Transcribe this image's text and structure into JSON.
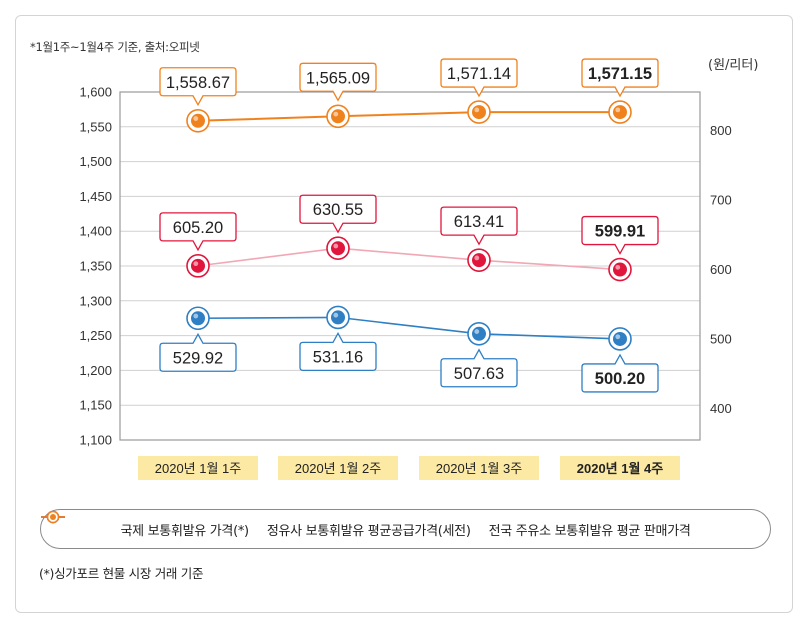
{
  "note_top": "*1월1주~1월4주 기준, 출처:오피넷",
  "unit_label": "(원/리터)",
  "footnote": "(*)싱가포르 현물 시장 거래 기준",
  "colors": {
    "orange": "#f0821e",
    "red": "#e0163c",
    "pink_line": "#f2a7b4",
    "blue": "#2f7fc4",
    "cat_bg": "#fbe9a4",
    "grid": "#d0d0d0"
  },
  "chart_data": {
    "type": "line",
    "categories": [
      "2020년 1월 1주",
      "2020년 1월 2주",
      "2020년 1월 3주",
      "2020년 1월 4주"
    ],
    "left_axis": {
      "ylim": [
        1100,
        1600
      ],
      "ticks": [
        "1,600",
        "1,550",
        "1,500",
        "1,450",
        "1,400",
        "1,350",
        "1,300",
        "1,250",
        "1,200",
        "1,150",
        "1,100"
      ]
    },
    "right_axis": {
      "ylim": [
        355,
        855
      ],
      "ticks": [
        "800",
        "700",
        "600",
        "500",
        "400"
      ],
      "tick_values": [
        800,
        700,
        600,
        500,
        400
      ],
      "label": "(원/리터)"
    },
    "series": [
      {
        "name": "전국 주유소 보통휘발유 평균 판매가격",
        "axis": "left",
        "color": "orange",
        "values": [
          1558.67,
          1565.09,
          1571.14,
          1571.15
        ],
        "labels": [
          "1,558.67",
          "1,565.09",
          "1,571.14",
          "1,571.15"
        ],
        "label_pos": "above"
      },
      {
        "name": "정유사 보통휘발유 평균공급가격(세전)",
        "axis": "right",
        "color": "red",
        "values": [
          605.2,
          630.55,
          613.41,
          599.91
        ],
        "labels": [
          "605.20",
          "630.55",
          "613.41",
          "599.91"
        ],
        "label_pos": "above"
      },
      {
        "name": "국제 보통휘발유 가격(*)",
        "axis": "right",
        "color": "blue",
        "values": [
          529.92,
          531.16,
          507.63,
          500.2
        ],
        "labels": [
          "529.92",
          "531.16",
          "507.63",
          "500.20"
        ],
        "label_pos": "below"
      }
    ],
    "legend": [
      {
        "label": "국제 보통휘발유 가격(*)",
        "color": "blue"
      },
      {
        "label": "정유사 보통휘발유 평균공급가격(세전)",
        "color": "red"
      },
      {
        "label": "전국 주유소 보통휘발유 평균 판매가격",
        "color": "orange"
      }
    ],
    "emphasized_category_index": 3
  }
}
